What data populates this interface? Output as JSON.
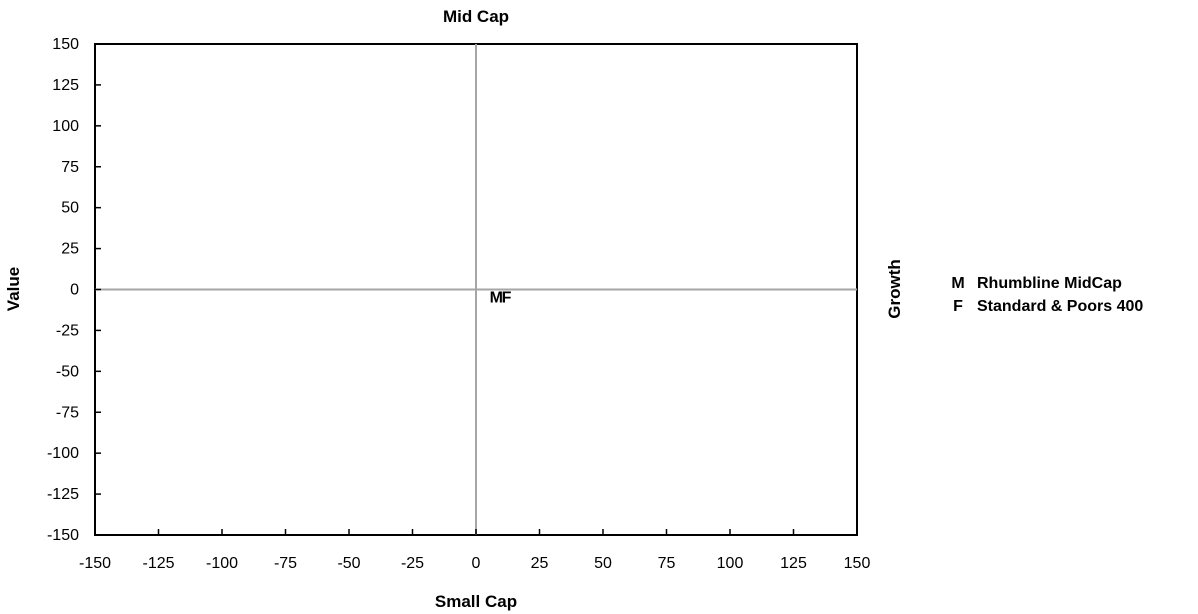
{
  "chart_data": {
    "type": "scatter",
    "title": "Mid Cap",
    "xlabel": "Small Cap",
    "ylabel": "Value",
    "right_label": "Growth",
    "xlim": [
      -150,
      150
    ],
    "ylim": [
      -150,
      150
    ],
    "x_ticks": [
      "-150",
      "-125",
      "-100",
      "-75",
      "-50",
      "-25",
      "0",
      "25",
      "50",
      "75",
      "100",
      "125",
      "150"
    ],
    "y_ticks": [
      "150",
      "125",
      "100",
      "75",
      "50",
      "25",
      "0",
      "-25",
      "-50",
      "-75",
      "-100",
      "-125",
      "-150"
    ],
    "grid": false,
    "legend_position": "right",
    "series": [
      {
        "marker": "M",
        "name": "Rhumbline MidCap",
        "x": [
          8
        ],
        "y": [
          -5
        ]
      },
      {
        "marker": "F",
        "name": "Standard & Poors 400",
        "x": [
          12
        ],
        "y": [
          -5
        ]
      }
    ],
    "colors": {
      "axis": "#000000",
      "crosshair": "#a6a6a6",
      "text": "#000000"
    }
  }
}
